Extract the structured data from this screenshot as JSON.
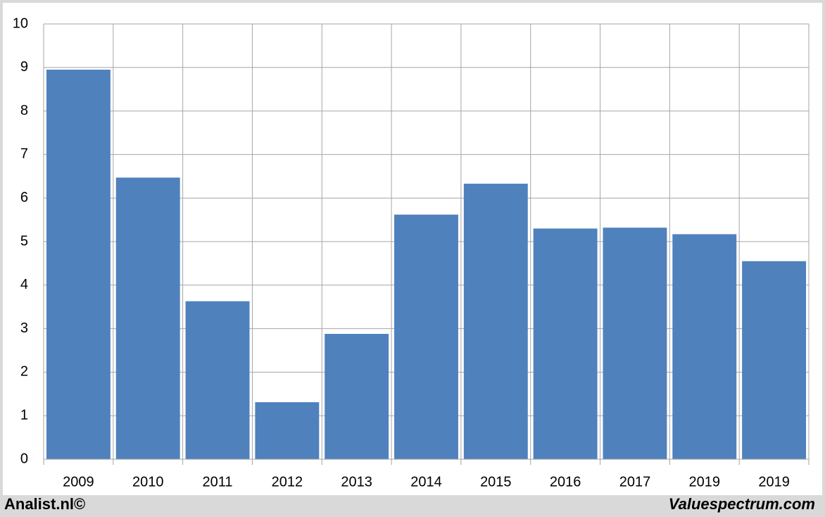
{
  "chart_data": {
    "type": "bar",
    "categories": [
      "2009",
      "2010",
      "2011",
      "2012",
      "2013",
      "2014",
      "2015",
      "2016",
      "2017",
      "2019",
      "2019"
    ],
    "values": [
      8.95,
      6.47,
      3.63,
      1.31,
      2.88,
      5.62,
      6.33,
      5.3,
      5.32,
      5.17,
      4.55
    ],
    "color": "#4f81bd",
    "ylim": [
      0,
      10
    ],
    "yticks": [
      0,
      1,
      2,
      3,
      4,
      5,
      6,
      7,
      8,
      9,
      10
    ],
    "grid": true
  },
  "footer": {
    "left": "Analist.nl©",
    "right": "Valuespectrum.com"
  }
}
